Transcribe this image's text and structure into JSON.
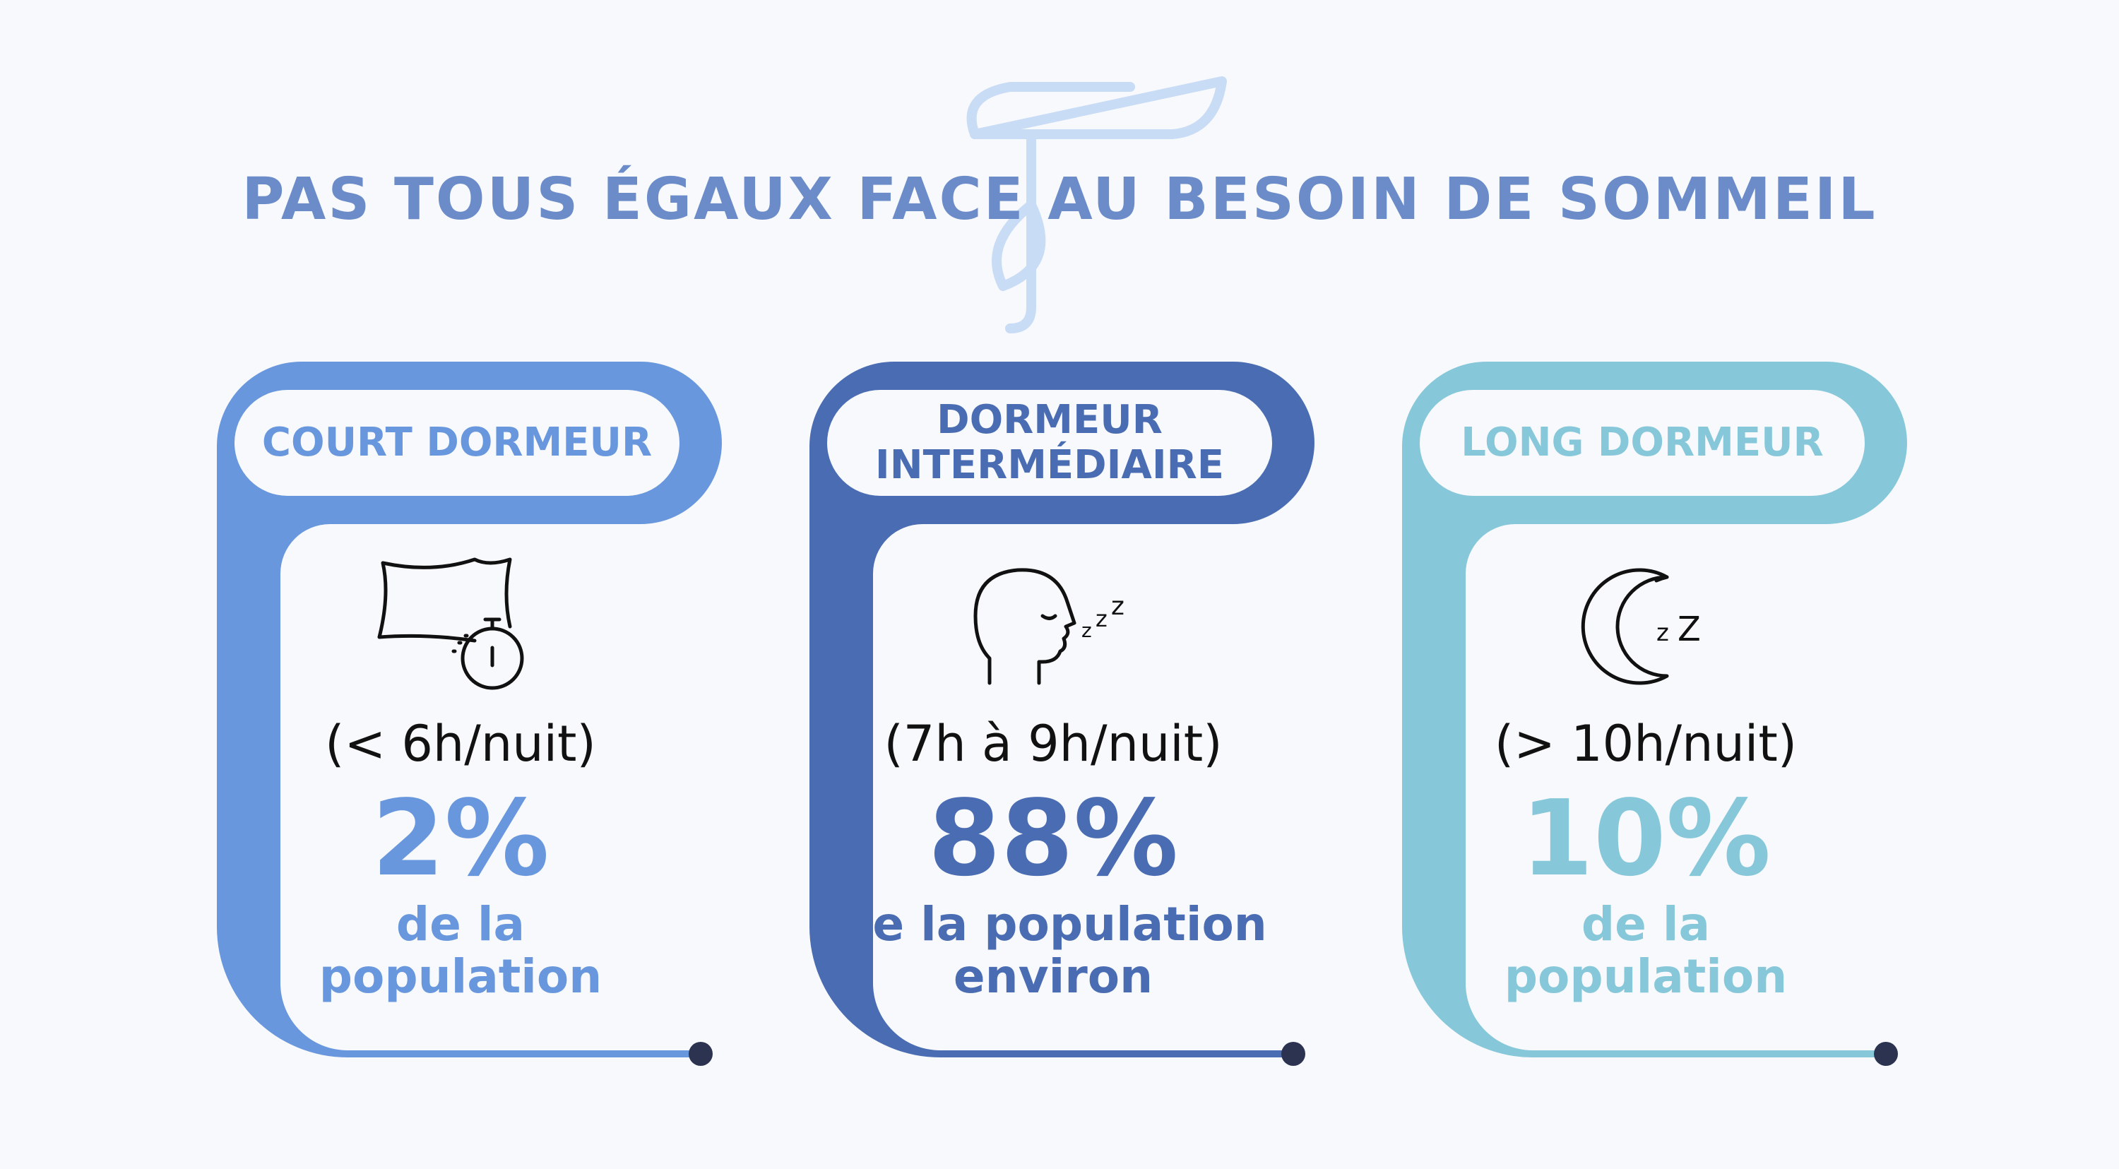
{
  "title": "PAS TOUS ÉGAUX FACE AU BESOIN DE SOMMEIL",
  "colors": {
    "background": "#f7f9fc",
    "title": "#6b8cc9",
    "logo": "#c9dcf5",
    "short_sleeper": "#6897dd",
    "intermediate_sleeper": "#4a6cb3",
    "long_sleeper": "#86c7d9",
    "end_dot": "#2b3350"
  },
  "cards": [
    {
      "label": "COURT DORMEUR",
      "icon": "pillow-stopwatch-icon",
      "range": "(< 6h/nuit)",
      "percent": "2%",
      "population": "de la\npopulation"
    },
    {
      "label": "DORMEUR\nINTERMÉDIAIRE",
      "icon": "sleeping-head-icon",
      "range": "(7h à 9h/nuit)",
      "percent": "88%",
      "population": "de la population\nenviron"
    },
    {
      "label": "LONG DORMEUR",
      "icon": "moon-zz-icon",
      "range": "(> 10h/nuit)",
      "percent": "10%",
      "population": "de la\npopulation"
    }
  ]
}
